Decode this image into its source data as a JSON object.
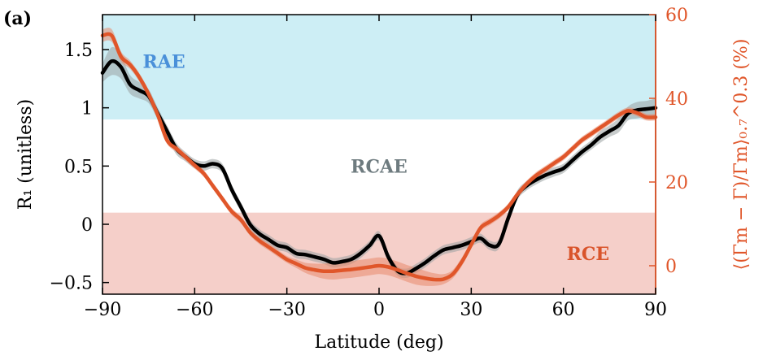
{
  "chart_data": {
    "type": "line",
    "panel_label": "(a)",
    "xlabel": "Latitude (deg)",
    "ylabel": "R₁ (unitless)",
    "y2label": "⟨(Γm − Γ)/Γm⟩₀.₇^0.3 (%)",
    "xlim": [
      -90,
      90
    ],
    "ylim": [
      -0.6,
      1.8
    ],
    "y2lim": [
      -6.8,
      60
    ],
    "xticks": [
      -90,
      -60,
      -30,
      0,
      30,
      60,
      90
    ],
    "xtick_labels": [
      "−90",
      "−60",
      "−30",
      "0",
      "30",
      "60",
      "90"
    ],
    "yticks": [
      -0.5,
      0,
      0.5,
      1,
      1.5
    ],
    "ytick_labels": [
      "−0.5",
      "0",
      "0.5",
      "1",
      "1.5"
    ],
    "y2ticks": [
      0,
      20,
      40,
      60
    ],
    "y2tick_labels": [
      "0",
      "20",
      "40",
      "60"
    ],
    "regions": [
      {
        "name": "RAE",
        "y0": 0.9,
        "y1": 1.8,
        "color": "#cdeef5",
        "label_x": -70,
        "label_y": 1.4,
        "label_color": "#4a90d9"
      },
      {
        "name": "RCAE",
        "y0": 0.1,
        "y1": 0.9,
        "color": "#ffffff",
        "label_x": 0,
        "label_y": 0.5,
        "label_color": "#6e7b7f"
      },
      {
        "name": "RCE",
        "y0": -0.6,
        "y1": 0.1,
        "color": "#f5cfc9",
        "label_x": 68,
        "label_y": -0.25,
        "label_color": "#d9542b"
      }
    ],
    "series": [
      {
        "axis": "left",
        "color": "#000000",
        "band_color": "#9aa3a3",
        "x": [
          -90,
          -87,
          -84,
          -81,
          -78,
          -75,
          -72,
          -69,
          -66,
          -63,
          -60,
          -57,
          -54,
          -51,
          -48,
          -45,
          -42,
          -39,
          -36,
          -33,
          -30,
          -27,
          -24,
          -21,
          -18,
          -15,
          -12,
          -9,
          -6,
          -3,
          0,
          3,
          6,
          9,
          12,
          15,
          18,
          21,
          24,
          27,
          30,
          33,
          36,
          39,
          42,
          45,
          48,
          51,
          54,
          57,
          60,
          63,
          66,
          69,
          72,
          75,
          78,
          81,
          84,
          87,
          90
        ],
        "y": [
          1.3,
          1.4,
          1.35,
          1.2,
          1.15,
          1.1,
          0.95,
          0.8,
          0.65,
          0.58,
          0.52,
          0.5,
          0.52,
          0.48,
          0.3,
          0.15,
          0.0,
          -0.08,
          -0.13,
          -0.18,
          -0.2,
          -0.25,
          -0.26,
          -0.28,
          -0.3,
          -0.33,
          -0.32,
          -0.3,
          -0.25,
          -0.18,
          -0.1,
          -0.28,
          -0.4,
          -0.42,
          -0.38,
          -0.33,
          -0.27,
          -0.22,
          -0.2,
          -0.18,
          -0.15,
          -0.12,
          -0.18,
          -0.17,
          0.05,
          0.25,
          0.33,
          0.38,
          0.42,
          0.45,
          0.48,
          0.55,
          0.62,
          0.68,
          0.75,
          0.8,
          0.85,
          0.95,
          0.98,
          0.99,
          1.0
        ],
        "band": [
          0.08,
          0.12,
          0.1,
          0.08,
          0.07,
          0.06,
          0.05,
          0.05,
          0.05,
          0.04,
          0.04,
          0.04,
          0.04,
          0.04,
          0.04,
          0.04,
          0.04,
          0.04,
          0.04,
          0.04,
          0.04,
          0.04,
          0.04,
          0.04,
          0.04,
          0.04,
          0.04,
          0.04,
          0.04,
          0.04,
          0.04,
          0.04,
          0.04,
          0.04,
          0.04,
          0.04,
          0.04,
          0.04,
          0.04,
          0.04,
          0.04,
          0.04,
          0.04,
          0.04,
          0.04,
          0.04,
          0.04,
          0.04,
          0.04,
          0.04,
          0.04,
          0.04,
          0.04,
          0.04,
          0.05,
          0.05,
          0.06,
          0.06,
          0.07,
          0.07,
          0.08
        ]
      },
      {
        "axis": "right",
        "color": "#e0562a",
        "band_color": "#e88a6b",
        "x": [
          -90,
          -87,
          -84,
          -81,
          -78,
          -75,
          -72,
          -69,
          -66,
          -63,
          -60,
          -57,
          -54,
          -51,
          -48,
          -45,
          -42,
          -39,
          -36,
          -33,
          -30,
          -27,
          -24,
          -21,
          -18,
          -15,
          -12,
          -9,
          -6,
          -3,
          0,
          3,
          6,
          9,
          12,
          15,
          18,
          21,
          24,
          27,
          30,
          33,
          36,
          39,
          42,
          45,
          48,
          51,
          54,
          57,
          60,
          63,
          66,
          69,
          72,
          75,
          78,
          81,
          84,
          87,
          90
        ],
        "y": [
          55,
          55,
          50,
          48,
          45,
          41,
          36,
          30,
          28,
          26,
          24,
          22,
          19,
          16,
          13,
          11,
          8,
          6,
          4.5,
          3,
          1.5,
          0.5,
          -0.5,
          -1,
          -1.3,
          -1.3,
          -1.1,
          -0.9,
          -0.6,
          -0.3,
          0,
          -0.3,
          -1,
          -1.8,
          -2.5,
          -3,
          -3.3,
          -3.2,
          -2,
          1,
          5,
          9,
          10.5,
          12,
          14,
          17,
          19.5,
          21.5,
          23,
          24.5,
          26,
          28,
          30,
          31.5,
          33,
          34.5,
          36,
          37,
          36.5,
          35.5,
          35.5
        ],
        "band": [
          1.5,
          1.5,
          1.2,
          1,
          1,
          1,
          0.8,
          0.8,
          0.8,
          0.8,
          0.8,
          0.8,
          0.8,
          0.8,
          0.8,
          0.8,
          0.8,
          0.8,
          0.8,
          0.8,
          0.8,
          1,
          1.2,
          1.5,
          1.8,
          2,
          2,
          2,
          2,
          2,
          2,
          2,
          2,
          2,
          2,
          1.8,
          1.5,
          1.2,
          1,
          1,
          0.8,
          0.8,
          0.8,
          0.8,
          0.8,
          0.8,
          0.8,
          0.8,
          0.8,
          0.8,
          0.8,
          0.8,
          0.8,
          0.8,
          0.8,
          0.8,
          0.8,
          0.8,
          0.8,
          0.8,
          0.8
        ]
      }
    ],
    "grid": false,
    "colors": {
      "axis": "#000000",
      "right_axis": "#e0562a"
    }
  }
}
